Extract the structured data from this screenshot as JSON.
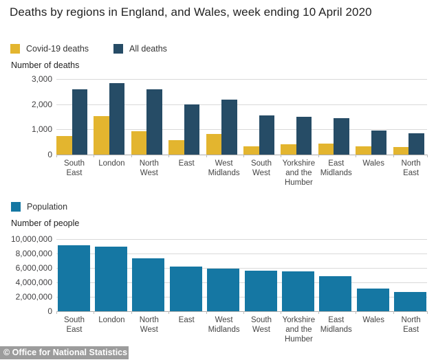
{
  "title": "Deaths by regions in England, and Wales, week ending 10 April 2020",
  "footer": {
    "text": "© Office for National Statistics",
    "bg": "#9c9c9c"
  },
  "colors": {
    "covid_yellow": "#e3b52f",
    "all_deaths_navy": "#264c66",
    "population_blue": "#1577a3",
    "gridline": "#d9d9d9",
    "axis_line": "#ababab",
    "background": "#ffffff"
  },
  "chart_data": [
    {
      "type": "bar",
      "title": "",
      "axis_title": "Number of deaths",
      "legend_position": "top",
      "grid": "horizontal",
      "legend": [
        {
          "label": "Covid-19 deaths",
          "color": "#e3b52f"
        },
        {
          "label": "All deaths",
          "color": "#264c66"
        }
      ],
      "categories": [
        "South East",
        "London",
        "North West",
        "East",
        "West Midlands",
        "South West",
        "Yorkshire and the Humber",
        "East Midlands",
        "Wales",
        "North East"
      ],
      "x_tick_lines": [
        [
          "South",
          "East"
        ],
        [
          "London"
        ],
        [
          "North",
          "West"
        ],
        [
          "East"
        ],
        [
          "West",
          "Midlands"
        ],
        [
          "South",
          "West"
        ],
        [
          "Yorkshire",
          "and the",
          "Humber"
        ],
        [
          "East",
          "Midlands"
        ],
        [
          "Wales"
        ],
        [
          "North",
          "East"
        ]
      ],
      "series": [
        {
          "name": "Covid-19 deaths",
          "values": [
            744,
            1525,
            917,
            581,
            826,
            329,
            399,
            431,
            333,
            300
          ]
        },
        {
          "name": "All deaths",
          "values": [
            2601,
            2840,
            2600,
            1990,
            2180,
            1550,
            1500,
            1440,
            950,
            850
          ]
        }
      ],
      "ylabel": "Number of deaths",
      "xlabel": "",
      "ylim": [
        0,
        3000
      ],
      "yticks": [
        0,
        1000,
        2000,
        3000
      ]
    },
    {
      "type": "bar",
      "title": "",
      "axis_title": "Number of people",
      "legend_position": "top",
      "grid": "horizontal",
      "legend": [
        {
          "label": "Population",
          "color": "#1577a3"
        }
      ],
      "categories": [
        "South East",
        "London",
        "North West",
        "East",
        "West Midlands",
        "South West",
        "Yorkshire and the Humber",
        "East Midlands",
        "Wales",
        "North East"
      ],
      "x_tick_lines": [
        [
          "South",
          "East"
        ],
        [
          "London"
        ],
        [
          "North",
          "West"
        ],
        [
          "East"
        ],
        [
          "West",
          "Midlands"
        ],
        [
          "South",
          "West"
        ],
        [
          "Yorkshire",
          "and the",
          "Humber"
        ],
        [
          "East",
          "Midlands"
        ],
        [
          "Wales"
        ],
        [
          "North",
          "East"
        ]
      ],
      "series": [
        {
          "name": "Population",
          "values": [
            9130000,
            8960000,
            7290000,
            6200000,
            5950000,
            5600000,
            5500000,
            4830000,
            3140000,
            2670000
          ]
        }
      ],
      "ylabel": "Number of people",
      "xlabel": "",
      "ylim": [
        0,
        10000000
      ],
      "yticks": [
        0,
        2000000,
        4000000,
        6000000,
        8000000,
        10000000
      ]
    }
  ]
}
